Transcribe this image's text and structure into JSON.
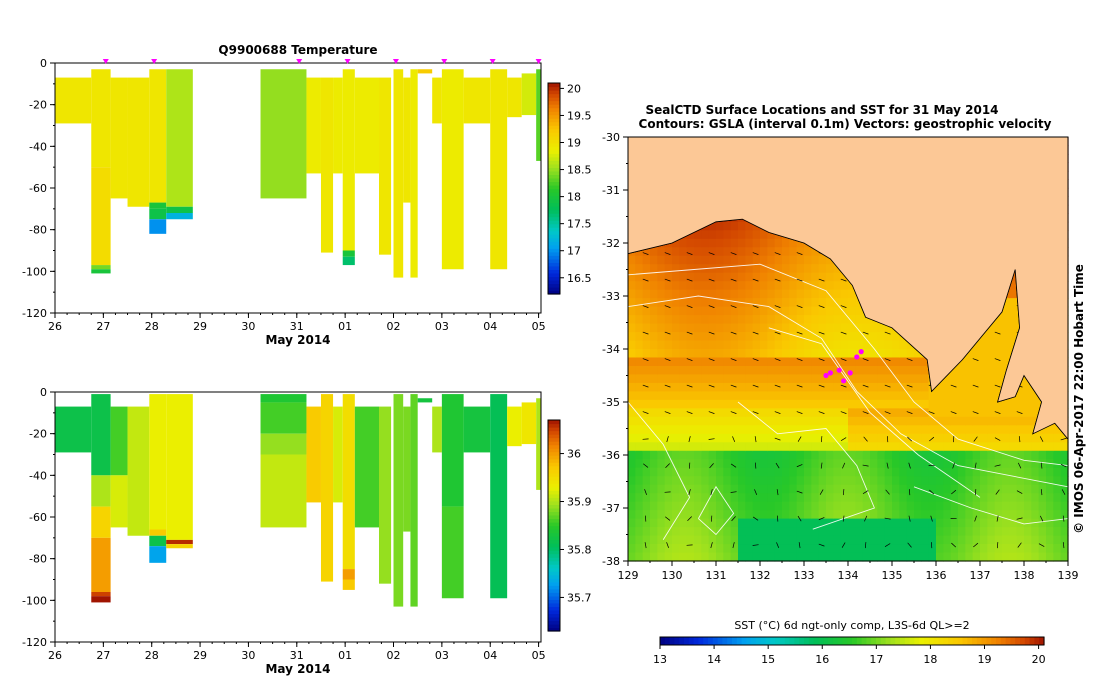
{
  "chart_data": [
    {
      "id": "temperature",
      "type": "heatmap",
      "title": "Q9900688  Temperature",
      "xlabel": "May 2014",
      "x_ticks": [
        "26",
        "27",
        "28",
        "29",
        "30",
        "31",
        "01",
        "02",
        "03",
        "04",
        "05"
      ],
      "x_range": [
        26,
        36.05
      ],
      "y_ticks": [
        0,
        -20,
        -40,
        -60,
        -80,
        -100,
        -120
      ],
      "ylim": [
        -120,
        0
      ],
      "colorbar": {
        "min": 16.2,
        "max": 20.1,
        "ticks": [
          16.5,
          17,
          17.5,
          18,
          18.5,
          19,
          19.5,
          20
        ]
      },
      "profile_markers": [
        27.05,
        28.05,
        31.05,
        32.05,
        33.05,
        34.05,
        35.05,
        36.0
      ],
      "columns": [
        {
          "x0": 26.0,
          "x1": 26.75,
          "bins": [
            [
              -7,
              -29,
              18.95
            ]
          ]
        },
        {
          "x0": 26.75,
          "x1": 27.15,
          "bins": [
            [
              -3,
              -50,
              18.95
            ],
            [
              -50,
              -97,
              19.05
            ],
            [
              -97,
              -99,
              18.4
            ],
            [
              -99,
              -101,
              18.0
            ]
          ]
        },
        {
          "x0": 27.15,
          "x1": 27.5,
          "bins": [
            [
              -7,
              -65,
              18.95
            ]
          ]
        },
        {
          "x0": 27.5,
          "x1": 27.95,
          "bins": [
            [
              -7,
              -69,
              18.95
            ]
          ]
        },
        {
          "x0": 27.95,
          "x1": 28.3,
          "bins": [
            [
              -3,
              -67,
              18.95
            ],
            [
              -67,
              -70,
              18.0
            ],
            [
              -70,
              -75,
              17.9
            ],
            [
              -75,
              -82,
              17.0
            ]
          ]
        },
        {
          "x0": 28.3,
          "x1": 28.85,
          "bins": [
            [
              -3,
              -69,
              18.6
            ],
            [
              -69,
              -72,
              17.9
            ],
            [
              -72,
              -75,
              17.2
            ]
          ]
        },
        {
          "x0": 30.25,
          "x1": 31.2,
          "bins": [
            [
              -3,
              -65,
              18.5
            ]
          ]
        },
        {
          "x0": 31.2,
          "x1": 31.5,
          "bins": [
            [
              -7,
              -53,
              18.9
            ]
          ]
        },
        {
          "x0": 31.5,
          "x1": 31.75,
          "bins": [
            [
              -7,
              -91,
              18.95
            ]
          ]
        },
        {
          "x0": 31.75,
          "x1": 31.95,
          "bins": [
            [
              -7,
              -53,
              18.9
            ]
          ]
        },
        {
          "x0": 31.95,
          "x1": 32.2,
          "bins": [
            [
              -3,
              -90,
              18.9
            ],
            [
              -90,
              -93,
              18.0
            ],
            [
              -93,
              -97,
              17.7
            ]
          ]
        },
        {
          "x0": 32.2,
          "x1": 32.7,
          "bins": [
            [
              -7,
              -53,
              18.9
            ]
          ]
        },
        {
          "x0": 32.7,
          "x1": 32.95,
          "bins": [
            [
              -7,
              -92,
              18.95
            ]
          ]
        },
        {
          "x0": 33.0,
          "x1": 33.2,
          "bins": [
            [
              -3,
              -103,
              18.95
            ]
          ]
        },
        {
          "x0": 33.2,
          "x1": 33.35,
          "bins": [
            [
              -7,
              -67,
              18.95
            ]
          ]
        },
        {
          "x0": 33.35,
          "x1": 33.5,
          "bins": [
            [
              -3,
              -103,
              18.9
            ]
          ]
        },
        {
          "x0": 33.5,
          "x1": 33.8,
          "bins": [
            [
              -3,
              -5,
              19.2
            ]
          ]
        },
        {
          "x0": 33.8,
          "x1": 34.0,
          "bins": [
            [
              -7,
              -29,
              18.95
            ]
          ]
        },
        {
          "x0": 34.0,
          "x1": 34.45,
          "bins": [
            [
              -3,
              -99,
              18.9
            ]
          ]
        },
        {
          "x0": 34.45,
          "x1": 35.0,
          "bins": [
            [
              -7,
              -29,
              18.95
            ]
          ]
        },
        {
          "x0": 35.0,
          "x1": 35.35,
          "bins": [
            [
              -3,
              -99,
              18.95
            ]
          ]
        },
        {
          "x0": 35.35,
          "x1": 35.65,
          "bins": [
            [
              -7,
              -26,
              18.95
            ]
          ]
        },
        {
          "x0": 35.65,
          "x1": 35.95,
          "bins": [
            [
              -5,
              -25,
              18.75
            ]
          ]
        },
        {
          "x0": 35.95,
          "x1": 36.05,
          "bins": [
            [
              -3,
              -47,
              18.3
            ]
          ]
        }
      ]
    },
    {
      "id": "salinity",
      "type": "heatmap",
      "title": "",
      "xlabel": "May 2014",
      "x_ticks": [
        "26",
        "27",
        "28",
        "29",
        "30",
        "31",
        "01",
        "02",
        "03",
        "04",
        "05"
      ],
      "x_range": [
        26,
        36.05
      ],
      "y_ticks": [
        0,
        -20,
        -40,
        -60,
        -80,
        -100,
        -120
      ],
      "ylim": [
        -120,
        0
      ],
      "colorbar": {
        "min": 35.63,
        "max": 36.07,
        "ticks": [
          35.7,
          35.8,
          35.9,
          36
        ]
      },
      "columns": [
        {
          "x0": 26.0,
          "x1": 26.75,
          "bins": [
            [
              -7,
              -29,
              35.82
            ]
          ]
        },
        {
          "x0": 26.75,
          "x1": 27.15,
          "bins": [
            [
              -1,
              -40,
              35.82
            ],
            [
              -40,
              -55,
              35.9
            ],
            [
              -55,
              -70,
              35.96
            ],
            [
              -70,
              -96,
              36.0
            ],
            [
              -96,
              -98,
              36.05
            ],
            [
              -98,
              -101,
              36.07
            ]
          ]
        },
        {
          "x0": 27.15,
          "x1": 27.5,
          "bins": [
            [
              -7,
              -40,
              35.86
            ],
            [
              -40,
              -65,
              35.92
            ]
          ]
        },
        {
          "x0": 27.5,
          "x1": 27.95,
          "bins": [
            [
              -7,
              -69,
              35.91
            ]
          ]
        },
        {
          "x0": 27.95,
          "x1": 28.3,
          "bins": [
            [
              -1,
              -66,
              35.93
            ],
            [
              -66,
              -69,
              35.97
            ],
            [
              -69,
              -74,
              35.82
            ],
            [
              -74,
              -82,
              35.73
            ]
          ]
        },
        {
          "x0": 28.3,
          "x1": 28.85,
          "bins": [
            [
              -1,
              -71,
              35.93
            ],
            [
              -71,
              -73,
              36.06
            ],
            [
              -73,
              -75,
              35.96
            ]
          ]
        },
        {
          "x0": 30.25,
          "x1": 31.2,
          "bins": [
            [
              -1,
              -5,
              35.84
            ],
            [
              -5,
              -20,
              35.86
            ],
            [
              -20,
              -30,
              35.89
            ],
            [
              -30,
              -65,
              35.91
            ]
          ]
        },
        {
          "x0": 31.2,
          "x1": 31.5,
          "bins": [
            [
              -7,
              -53,
              35.97
            ]
          ]
        },
        {
          "x0": 31.5,
          "x1": 31.75,
          "bins": [
            [
              -1,
              -91,
              35.96
            ]
          ]
        },
        {
          "x0": 31.75,
          "x1": 31.95,
          "bins": [
            [
              -7,
              -53,
              35.92
            ]
          ]
        },
        {
          "x0": 31.95,
          "x1": 32.2,
          "bins": [
            [
              -1,
              -85,
              35.95
            ],
            [
              -85,
              -90,
              36.0
            ],
            [
              -90,
              -95,
              35.97
            ]
          ]
        },
        {
          "x0": 32.2,
          "x1": 32.7,
          "bins": [
            [
              -7,
              -65,
              35.86
            ]
          ]
        },
        {
          "x0": 32.7,
          "x1": 32.95,
          "bins": [
            [
              -7,
              -92,
              35.89
            ]
          ]
        },
        {
          "x0": 33.0,
          "x1": 33.2,
          "bins": [
            [
              -1,
              -103,
              35.88
            ]
          ]
        },
        {
          "x0": 33.2,
          "x1": 33.35,
          "bins": [
            [
              -7,
              -67,
              35.88
            ]
          ]
        },
        {
          "x0": 33.35,
          "x1": 33.5,
          "bins": [
            [
              -1,
              -103,
              35.87
            ]
          ]
        },
        {
          "x0": 33.5,
          "x1": 33.8,
          "bins": [
            [
              -3,
              -5,
              35.83
            ]
          ]
        },
        {
          "x0": 33.8,
          "x1": 34.0,
          "bins": [
            [
              -7,
              -29,
              35.9
            ]
          ]
        },
        {
          "x0": 34.0,
          "x1": 34.45,
          "bins": [
            [
              -1,
              -55,
              35.84
            ],
            [
              -55,
              -99,
              35.86
            ]
          ]
        },
        {
          "x0": 34.45,
          "x1": 35.0,
          "bins": [
            [
              -7,
              -29,
              35.83
            ]
          ]
        },
        {
          "x0": 35.0,
          "x1": 35.35,
          "bins": [
            [
              -1,
              -99,
              35.81
            ]
          ]
        },
        {
          "x0": 35.35,
          "x1": 35.65,
          "bins": [
            [
              -7,
              -26,
              35.93
            ]
          ]
        },
        {
          "x0": 35.65,
          "x1": 35.95,
          "bins": [
            [
              -5,
              -25,
              35.94
            ]
          ]
        },
        {
          "x0": 35.95,
          "x1": 36.05,
          "bins": [
            [
              -3,
              -47,
              35.9
            ]
          ]
        }
      ]
    },
    {
      "id": "sst-map",
      "type": "heatmap",
      "title": "SealCTD Surface Locations and SST for 31 May 2014",
      "subtitle": "Contours: GSLA (interval 0.1m) Vectors: geostrophic velocity",
      "x_ticks": [
        "129",
        "130",
        "131",
        "132",
        "133",
        "134",
        "135",
        "136",
        "137",
        "138",
        "139"
      ],
      "y_ticks": [
        "-30",
        "-31",
        "-32",
        "-33",
        "-34",
        "-35",
        "-36",
        "-37",
        "-38"
      ],
      "xlim": [
        129,
        139
      ],
      "ylim": [
        -38,
        -30
      ],
      "colorbar": {
        "label": "SST (°C) 6d ngt-only comp, L3S-6d QL>=2",
        "min": 13,
        "max": 20.1,
        "ticks": [
          "13",
          "14",
          "15",
          "16",
          "17",
          "18",
          "19",
          "20"
        ]
      },
      "credit": "© IMOS 06-Apr-2017 22:00 Hobart Time",
      "seal_locations": [
        [
          133.6,
          -34.45
        ],
        [
          133.8,
          -34.4
        ],
        [
          134.05,
          -34.45
        ],
        [
          133.9,
          -34.6
        ],
        [
          134.2,
          -34.15
        ],
        [
          134.3,
          -34.05
        ],
        [
          133.5,
          -34.5
        ]
      ]
    }
  ],
  "colors": {
    "land": "#fcc896",
    "marker": "#ff00ff",
    "contour": "#ffffff",
    "coast": "#000000"
  }
}
